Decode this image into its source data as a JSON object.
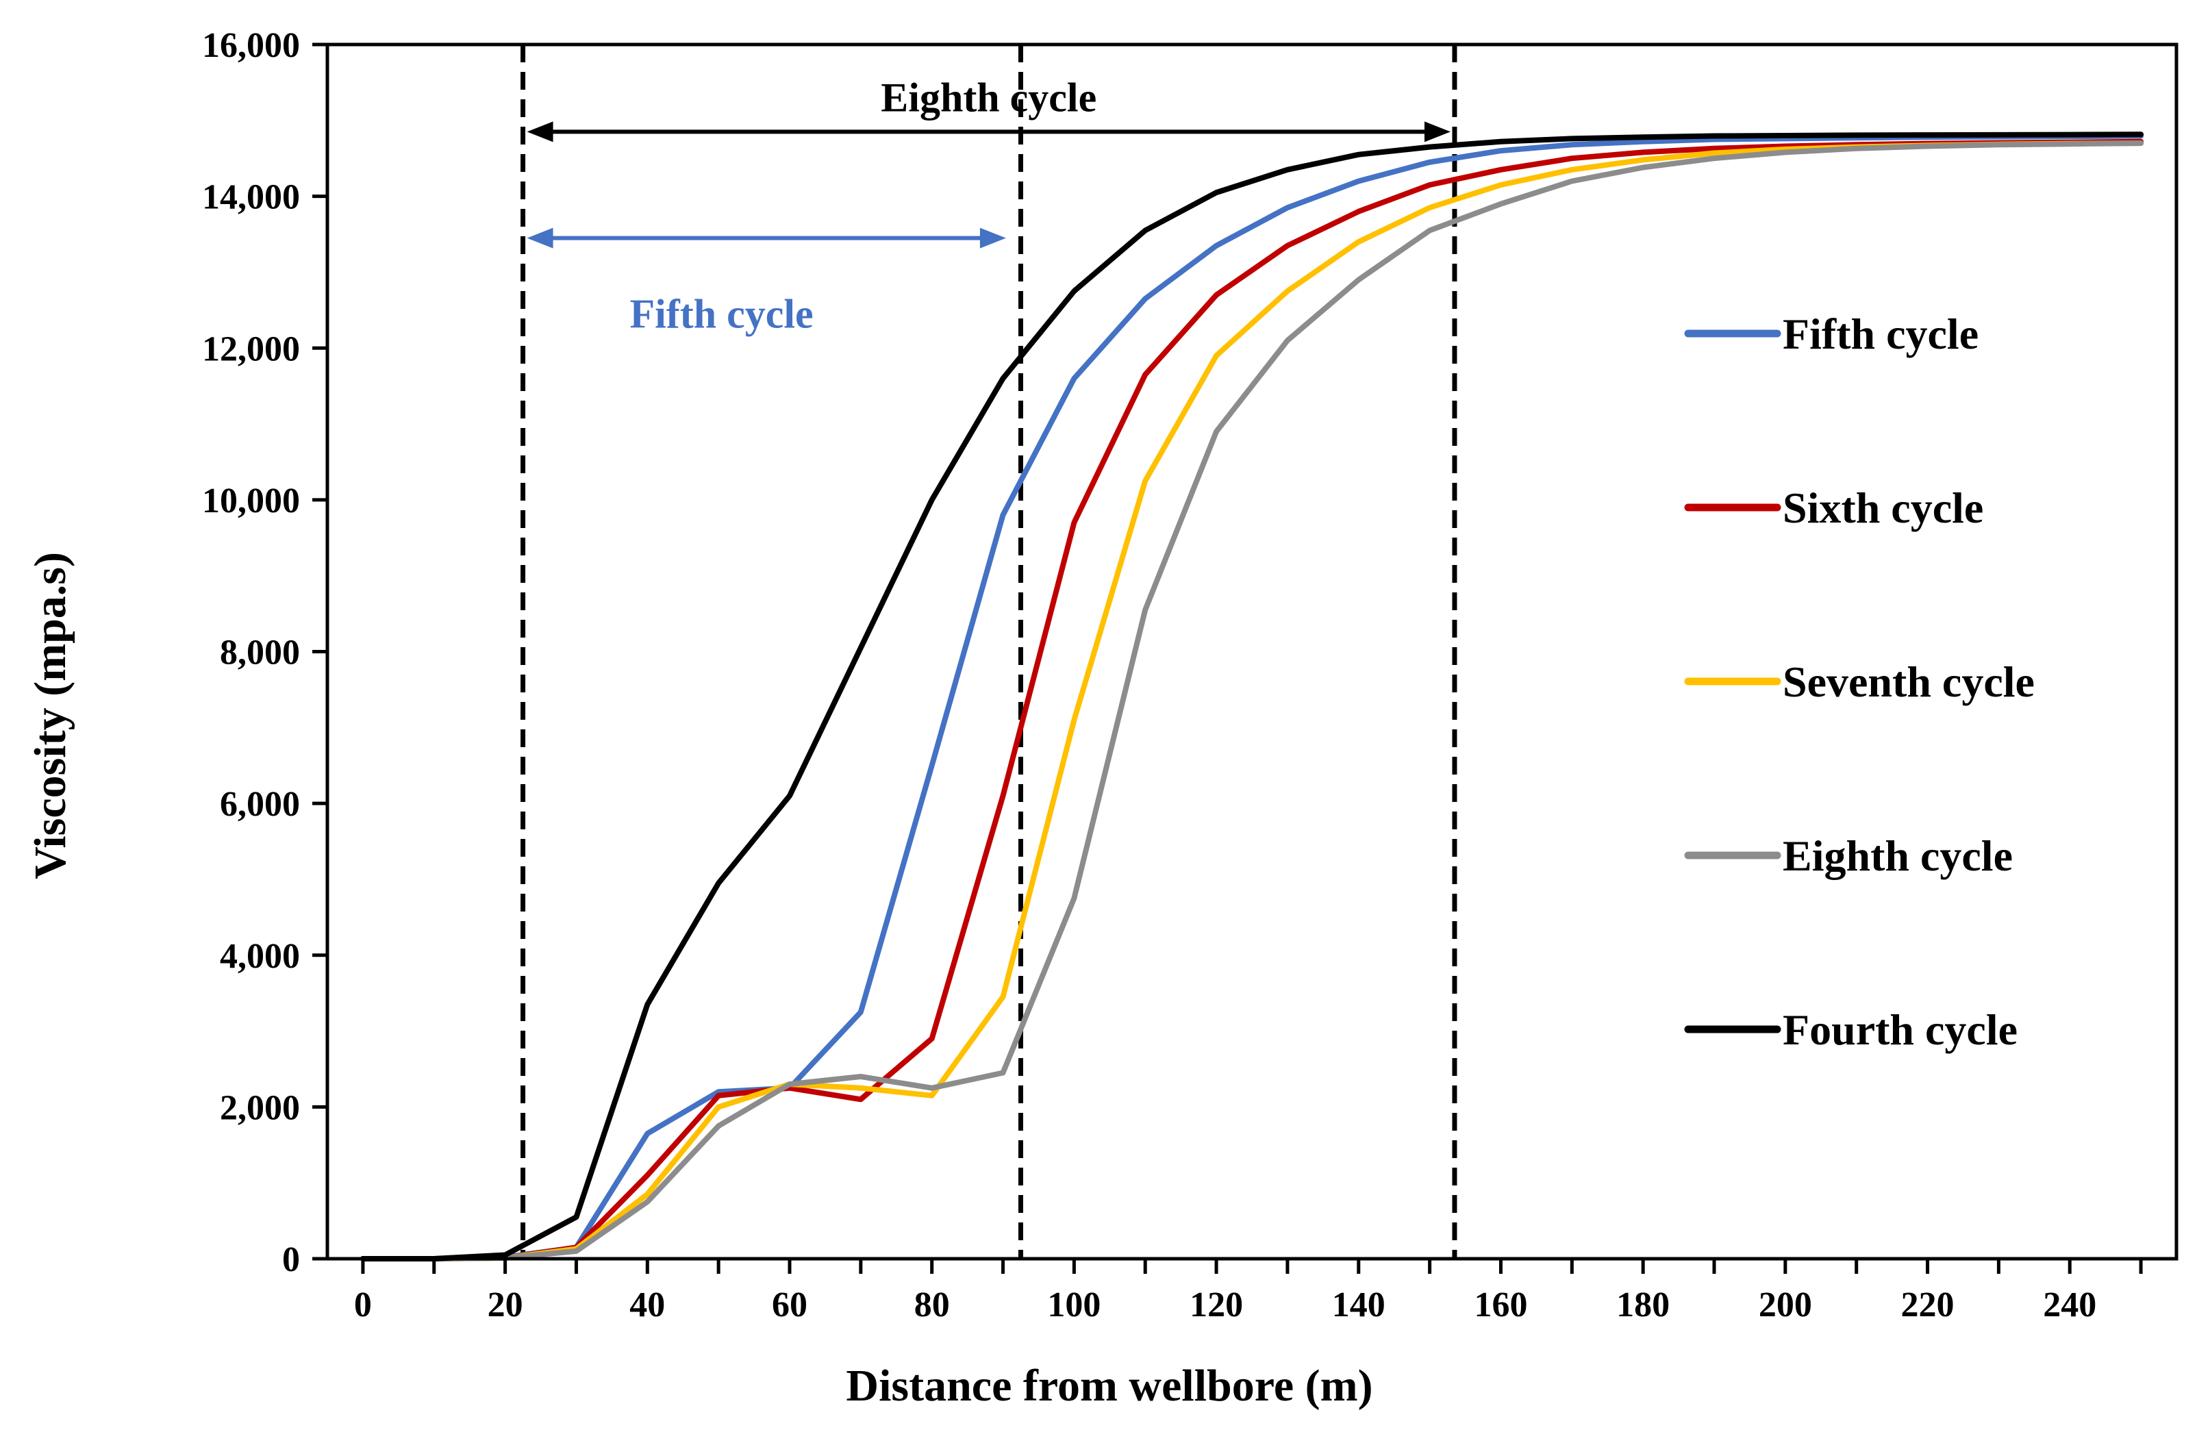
{
  "chart_data": {
    "type": "line",
    "xlabel": "Distance from wellbore (m)",
    "ylabel": "Viscosity (mpa.s)",
    "xlim": [
      -5,
      255
    ],
    "ylim": [
      0,
      16000
    ],
    "x_ticks": [
      0,
      20,
      40,
      60,
      80,
      100,
      120,
      140,
      160,
      180,
      200,
      220,
      240
    ],
    "y_ticks": [
      0,
      2000,
      4000,
      6000,
      8000,
      10000,
      12000,
      14000,
      16000
    ],
    "x_tick_labels": [
      "0",
      "20",
      "40",
      "60",
      "80",
      "100",
      "120",
      "140",
      "160",
      "180",
      "200",
      "220",
      "240"
    ],
    "y_tick_labels": [
      "0",
      "2,000",
      "4,000",
      "6,000",
      "8,000",
      "10,000",
      "12,000",
      "14,000",
      "16,000"
    ],
    "x": [
      0,
      10,
      20,
      30,
      40,
      50,
      60,
      70,
      80,
      90,
      100,
      110,
      120,
      130,
      140,
      150,
      160,
      170,
      180,
      190,
      200,
      210,
      220,
      230,
      240,
      250
    ],
    "series": [
      {
        "name": "Fifth cycle",
        "color": "#4472C4",
        "values": [
          0,
          0,
          20,
          150,
          1650,
          2200,
          2250,
          3250,
          6500,
          9800,
          11600,
          12650,
          13350,
          13850,
          14200,
          14450,
          14600,
          14680,
          14720,
          14750,
          14760,
          14770,
          14780,
          14785,
          14790,
          14795
        ]
      },
      {
        "name": "Sixth cycle",
        "color": "#C00000",
        "values": [
          0,
          0,
          10,
          150,
          1100,
          2150,
          2250,
          2100,
          2900,
          6100,
          9700,
          11650,
          12700,
          13350,
          13800,
          14150,
          14350,
          14500,
          14580,
          14630,
          14660,
          14680,
          14695,
          14705,
          14712,
          14720
        ]
      },
      {
        "name": "Seventh cycle",
        "color": "#FFC000",
        "values": [
          0,
          0,
          10,
          130,
          850,
          2000,
          2300,
          2250,
          2150,
          3450,
          7100,
          10250,
          11900,
          12750,
          13400,
          13850,
          14150,
          14350,
          14480,
          14570,
          14620,
          14650,
          14670,
          14685,
          14695,
          14700
        ]
      },
      {
        "name": "Eighth cycle",
        "color": "#8C8C8C",
        "values": [
          0,
          0,
          10,
          100,
          750,
          1750,
          2300,
          2400,
          2250,
          2450,
          4750,
          8550,
          10900,
          12100,
          12900,
          13550,
          13900,
          14200,
          14380,
          14500,
          14580,
          14630,
          14660,
          14680,
          14690,
          14700
        ]
      },
      {
        "name": "Fourth cycle",
        "color": "#000000",
        "values": [
          0,
          0,
          50,
          550,
          3350,
          4950,
          6100,
          8050,
          10000,
          11600,
          12750,
          13550,
          14050,
          14350,
          14550,
          14650,
          14720,
          14760,
          14780,
          14795,
          14800,
          14805,
          14808,
          14810,
          14812,
          14815
        ]
      }
    ],
    "vlines": [
      22.5,
      92.5,
      153.5
    ],
    "annotations": [
      {
        "text": "Eighth cycle",
        "color": "#000000",
        "from_x": 22.5,
        "to_x": 153.5,
        "y": 14850,
        "label_y": 15300
      },
      {
        "text": "Fifth cycle",
        "color": "#4472C4",
        "from_x": 22.5,
        "to_x": 91,
        "y": 13450,
        "label_y": 12450
      }
    ],
    "legend_position": "right"
  }
}
